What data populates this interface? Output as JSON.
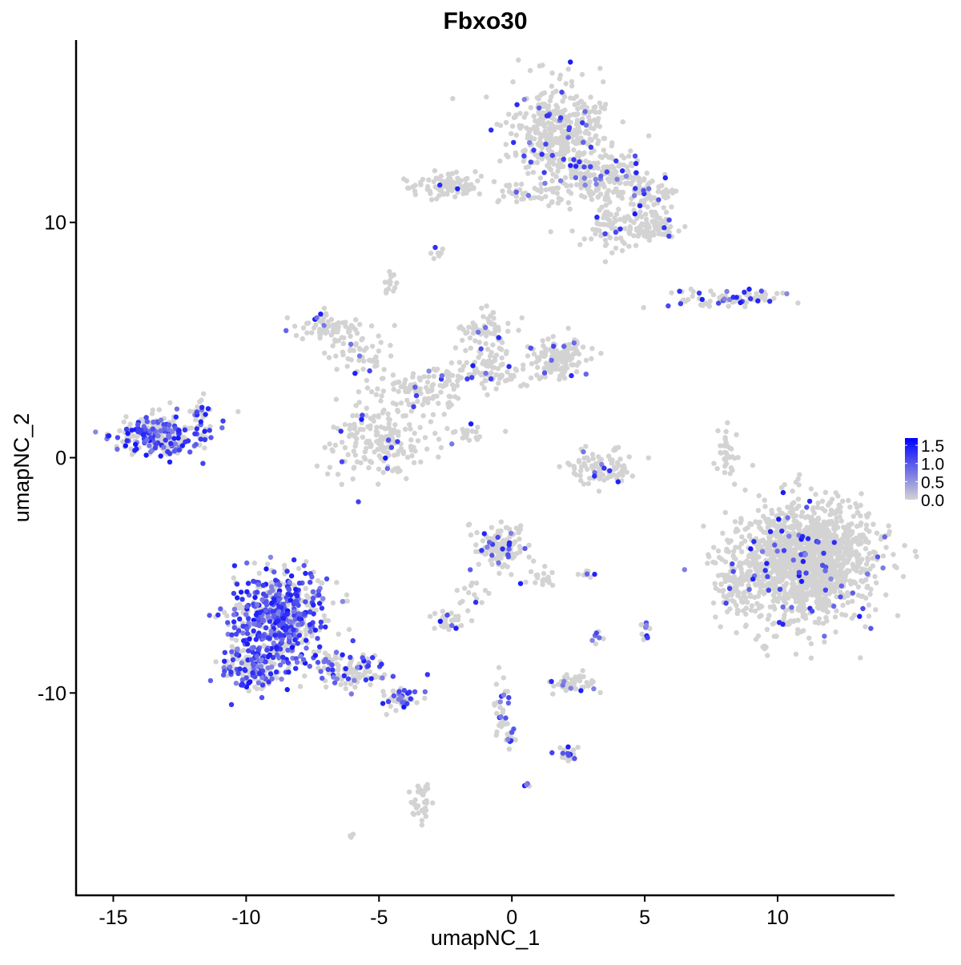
{
  "chart_data": {
    "type": "scatter",
    "title": "Fbxo30",
    "xlabel": "umapNC_1",
    "ylabel": "umapNC_2",
    "xlim": [
      -16.4,
      14.4
    ],
    "ylim": [
      -18.6,
      17.75
    ],
    "xticks": [
      -15,
      -10,
      -5,
      0,
      5,
      10
    ],
    "xtick_labels": [
      "-15",
      "-10",
      "-5",
      "0",
      "5",
      "10"
    ],
    "yticks": [
      -10,
      0,
      10
    ],
    "ytick_labels": [
      "-10",
      "0",
      "10"
    ],
    "grid": false,
    "legend": {
      "position": "right",
      "type": "colorbar",
      "ticks": [
        0.0,
        0.5,
        1.0,
        1.5
      ],
      "tick_labels": [
        "0.0",
        "0.5",
        "1.0",
        "1.5"
      ],
      "max": 1.7
    },
    "colors": {
      "low": "#D3D3D3",
      "high": "#0000FF"
    },
    "clusters": [
      {
        "cx": 1.8,
        "cy": 13.8,
        "sx": 1.2,
        "sy": 1.3,
        "n": 420,
        "expr_frac": 0.07
      },
      {
        "cx": 3.5,
        "cy": 12.0,
        "sx": 1.0,
        "sy": 0.7,
        "n": 160,
        "expr_frac": 0.08
      },
      {
        "cx": 5.0,
        "cy": 11.2,
        "sx": 0.8,
        "sy": 0.6,
        "n": 90,
        "expr_frac": 0.08
      },
      {
        "cx": 5.3,
        "cy": 9.7,
        "sx": 0.7,
        "sy": 0.5,
        "n": 90,
        "expr_frac": 0.06
      },
      {
        "cx": 3.6,
        "cy": 9.8,
        "sx": 0.6,
        "sy": 0.7,
        "n": 60,
        "expr_frac": 0.06
      },
      {
        "cx": 0.6,
        "cy": 11.2,
        "sx": 0.9,
        "sy": 0.25,
        "n": 40,
        "expr_frac": 0.05
      },
      {
        "cx": -2.4,
        "cy": 11.6,
        "sx": 0.9,
        "sy": 0.35,
        "n": 90,
        "expr_frac": 0.06
      },
      {
        "cx": -2.8,
        "cy": 8.7,
        "sx": 0.2,
        "sy": 0.15,
        "n": 8,
        "expr_frac": 0.3
      },
      {
        "cx": -4.6,
        "cy": 7.5,
        "sx": 0.2,
        "sy": 0.3,
        "n": 15,
        "expr_frac": 0.0
      },
      {
        "cx": 8.3,
        "cy": 6.8,
        "sx": 1.3,
        "sy": 0.25,
        "n": 80,
        "expr_frac": 0.3
      },
      {
        "cx": -7.0,
        "cy": 5.5,
        "sx": 0.7,
        "sy": 0.4,
        "n": 70,
        "expr_frac": 0.08
      },
      {
        "cx": -5.5,
        "cy": 4.4,
        "sx": 0.8,
        "sy": 0.6,
        "n": 50,
        "expr_frac": 0.08
      },
      {
        "cx": -5.0,
        "cy": 0.8,
        "sx": 1.1,
        "sy": 1.1,
        "n": 200,
        "expr_frac": 0.1
      },
      {
        "cx": -3.4,
        "cy": 2.8,
        "sx": 1.0,
        "sy": 0.6,
        "n": 90,
        "expr_frac": 0.08
      },
      {
        "cx": -1.0,
        "cy": 5.2,
        "sx": 0.6,
        "sy": 0.8,
        "n": 90,
        "expr_frac": 0.1
      },
      {
        "cx": -1.0,
        "cy": 3.6,
        "sx": 1.1,
        "sy": 0.4,
        "n": 80,
        "expr_frac": 0.08
      },
      {
        "cx": 1.8,
        "cy": 4.2,
        "sx": 0.7,
        "sy": 0.5,
        "n": 130,
        "expr_frac": 0.08
      },
      {
        "cx": -1.8,
        "cy": 1.0,
        "sx": 0.6,
        "sy": 0.3,
        "n": 20,
        "expr_frac": 0.05
      },
      {
        "cx": -13.2,
        "cy": 1.0,
        "sx": 1.0,
        "sy": 0.55,
        "n": 260,
        "expr_frac": 0.45
      },
      {
        "cx": -11.8,
        "cy": 2.2,
        "sx": 0.3,
        "sy": 0.3,
        "n": 15,
        "expr_frac": 0.2
      },
      {
        "cx": 3.3,
        "cy": -0.5,
        "sx": 0.9,
        "sy": 0.5,
        "n": 90,
        "expr_frac": 0.08
      },
      {
        "cx": 8.1,
        "cy": 0.3,
        "sx": 0.2,
        "sy": 0.8,
        "n": 35,
        "expr_frac": 0.0
      },
      {
        "cx": 11.0,
        "cy": -4.4,
        "sx": 1.6,
        "sy": 1.5,
        "n": 1500,
        "expr_frac": 0.04
      },
      {
        "cx": 8.3,
        "cy": -5.5,
        "sx": 0.4,
        "sy": 0.8,
        "n": 60,
        "expr_frac": 0.03
      },
      {
        "cx": -0.4,
        "cy": -3.8,
        "sx": 0.6,
        "sy": 0.6,
        "n": 130,
        "expr_frac": 0.15
      },
      {
        "cx": 1.2,
        "cy": -5.0,
        "sx": 0.3,
        "sy": 0.4,
        "n": 20,
        "expr_frac": 0.1
      },
      {
        "cx": -8.8,
        "cy": -6.8,
        "sx": 1.1,
        "sy": 1.2,
        "n": 560,
        "expr_frac": 0.6
      },
      {
        "cx": -9.6,
        "cy": -8.9,
        "sx": 0.8,
        "sy": 0.6,
        "n": 160,
        "expr_frac": 0.55
      },
      {
        "cx": -6.2,
        "cy": -9.0,
        "sx": 1.0,
        "sy": 0.5,
        "n": 110,
        "expr_frac": 0.35
      },
      {
        "cx": -4.3,
        "cy": -10.2,
        "sx": 0.5,
        "sy": 0.3,
        "n": 50,
        "expr_frac": 0.3
      },
      {
        "cx": -2.4,
        "cy": -6.9,
        "sx": 0.35,
        "sy": 0.25,
        "n": 35,
        "expr_frac": 0.15
      },
      {
        "cx": -1.5,
        "cy": -5.8,
        "sx": 0.3,
        "sy": 0.5,
        "n": 15,
        "expr_frac": 0.05
      },
      {
        "cx": 2.3,
        "cy": -9.6,
        "sx": 0.6,
        "sy": 0.3,
        "n": 50,
        "expr_frac": 0.15
      },
      {
        "cx": -0.3,
        "cy": -10.8,
        "sx": 0.2,
        "sy": 0.7,
        "n": 30,
        "expr_frac": 0.25
      },
      {
        "cx": 0.0,
        "cy": -12.0,
        "sx": 0.2,
        "sy": 0.3,
        "n": 15,
        "expr_frac": 0.4
      },
      {
        "cx": 2.2,
        "cy": -12.6,
        "sx": 0.3,
        "sy": 0.2,
        "n": 20,
        "expr_frac": 0.35
      },
      {
        "cx": -3.4,
        "cy": -14.6,
        "sx": 0.2,
        "sy": 0.5,
        "n": 35,
        "expr_frac": 0.05
      },
      {
        "cx": 0.6,
        "cy": -14.0,
        "sx": 0.1,
        "sy": 0.1,
        "n": 4,
        "expr_frac": 0.7
      },
      {
        "cx": -6.05,
        "cy": -16.1,
        "sx": 0.1,
        "sy": 0.1,
        "n": 3,
        "expr_frac": 0.3
      },
      {
        "cx": 5.0,
        "cy": -7.4,
        "sx": 0.15,
        "sy": 0.35,
        "n": 14,
        "expr_frac": 0.3
      },
      {
        "cx": 3.3,
        "cy": -7.6,
        "sx": 0.15,
        "sy": 0.3,
        "n": 8,
        "expr_frac": 0.3
      },
      {
        "cx": 2.8,
        "cy": -4.9,
        "sx": 0.2,
        "sy": 0.1,
        "n": 8,
        "expr_frac": 0.3
      }
    ]
  }
}
